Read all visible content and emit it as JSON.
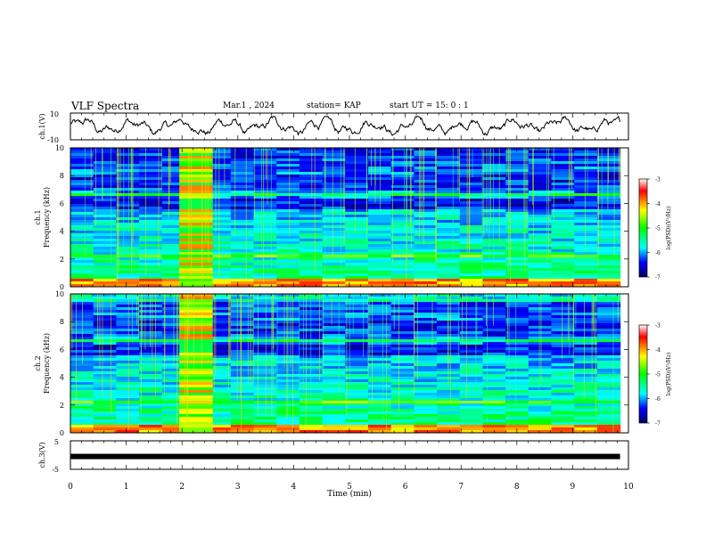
{
  "header": {
    "title": "VLF Spectra",
    "date": "Mar.1 , 2024",
    "station": "station= KAP",
    "start_ut": "start UT = 15: 0 : 1"
  },
  "chart_data": [
    {
      "type": "line",
      "panel": "ch1-waveform",
      "ylabel": "ch.1(V)",
      "xlim": [
        0,
        10
      ],
      "ylim": [
        -10,
        10
      ],
      "ytick_labels": [
        "10",
        "-10"
      ],
      "series": [
        {
          "values_note": "noisy trace fluctuating roughly between -7 and 7 V",
          "x_end": 9.85
        }
      ]
    },
    {
      "type": "heatmap",
      "panel": "ch1-spectrogram",
      "ylabel_line1": "ch.1",
      "ylabel_line2": "Frequency (kHz)",
      "xlim": [
        0,
        10
      ],
      "ylim": [
        0,
        10
      ],
      "yticks": [
        0,
        2,
        4,
        6,
        8,
        10
      ],
      "colorbar": {
        "label": "log(PSD)(V²/Hz)",
        "range": [
          -7,
          -3
        ],
        "ticks": [
          -3,
          -4,
          -5,
          -6,
          -7
        ]
      },
      "features": {
        "broadband_burst_min": [
          1.95,
          2.55
        ],
        "data_end_min": 9.85
      }
    },
    {
      "type": "heatmap",
      "panel": "ch2-spectrogram",
      "ylabel_line1": "ch.2",
      "ylabel_line2": "Frequency (kHz)",
      "xlim": [
        0,
        10
      ],
      "ylim": [
        0,
        10
      ],
      "yticks": [
        0,
        2,
        4,
        6,
        8,
        10
      ],
      "colorbar": {
        "label": "log(PSD)(V²/Hz)",
        "range": [
          -7,
          -3
        ],
        "ticks": [
          -3,
          -4,
          -5,
          -6,
          -7
        ]
      },
      "features": {
        "broadband_burst_min": [
          1.95,
          2.55
        ],
        "data_end_min": 9.85
      }
    },
    {
      "type": "line",
      "panel": "ch3-trace",
      "ylabel": "ch.3(V)",
      "xlim": [
        0,
        10
      ],
      "ylim": [
        -5,
        5
      ],
      "ytick_labels": [
        "5",
        "-5"
      ],
      "series": [
        {
          "values_note": "flat trace near -0.5 V",
          "level": -0.5,
          "x_end": 9.85
        }
      ],
      "xlabel": "Time (min)",
      "xtick_labels": [
        "0",
        "1",
        "2",
        "3",
        "4",
        "5",
        "6",
        "7",
        "8",
        "9",
        "10"
      ]
    }
  ]
}
